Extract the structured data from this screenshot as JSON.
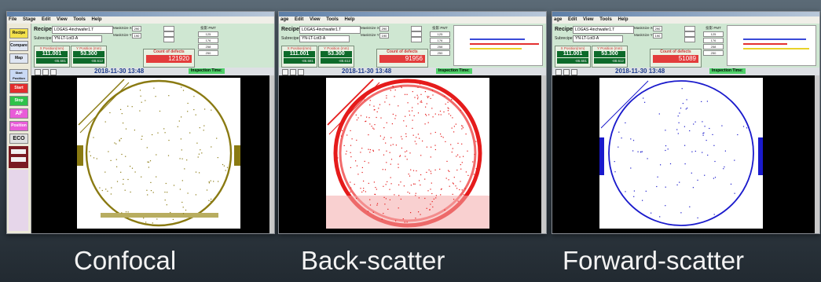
{
  "windows": [
    {
      "id": "confocal",
      "menu": [
        "File",
        "Stage",
        "Edit",
        "View",
        "Tools",
        "Help"
      ],
      "recipe": {
        "label": "Recipe",
        "value": "LOGAS-4inchwafer1.T"
      },
      "subrecipe": {
        "label": "Subrecipe",
        "value": "YN-LT-Lot3-A"
      },
      "mask_x": "MaskSize X",
      "mask_x_val": "290",
      "mask_y": "MaskSize Y",
      "mask_y_val": "190",
      "x_position": {
        "title": "X Position(mm)",
        "value": "111.001",
        "sub": "-86.681"
      },
      "y_position": {
        "title": "Y Position (mm)",
        "value": "53.300",
        "sub": "-88.612"
      },
      "count": {
        "title": "Count of defects",
        "value": "121920"
      },
      "pmt": {
        "label": "投影 PMT",
        "v1": "125",
        "v2": "176",
        "v3": "258",
        "v4": "250"
      },
      "datetime": "2018-11-30 13:48",
      "inspection_label": "Inspection Time:",
      "defect_color": "#8a7a12",
      "sidebar": {
        "buttons": [
          "Recipe",
          "Compare",
          "Map",
          "Start Position",
          "Start",
          "Stop",
          "AF",
          "Position",
          "ECO"
        ]
      }
    },
    {
      "id": "backscatter",
      "menu": [
        "age",
        "Edit",
        "View",
        "Tools",
        "Help"
      ],
      "recipe": {
        "label": "Recipe",
        "value": "LOGAS-4inchwafer1.T"
      },
      "subrecipe": {
        "label": "Subrecipe",
        "value": "YN-LT-Lot3-A"
      },
      "mask_x": "MaskSize X",
      "mask_x_val": "290",
      "mask_y": "MaskSize Y",
      "mask_y_val": "190",
      "x_position": {
        "title": "X Position(mm)",
        "value": "111.001",
        "sub": "-86.681"
      },
      "y_position": {
        "title": "Y Position (mm)",
        "value": "53.300",
        "sub": "-88.612"
      },
      "count": {
        "title": "Count of defects",
        "value": "91956"
      },
      "pmt": {
        "label": "投影 PMT",
        "v1": "125",
        "v2": "176",
        "v3": "258",
        "v4": "250"
      },
      "datetime": "2018-11-30 13:48",
      "inspection_label": "Inspection Time:",
      "defect_color": "#e51b1b"
    },
    {
      "id": "forwardscatter",
      "menu": [
        "age",
        "Edit",
        "View",
        "Tools",
        "Help"
      ],
      "recipe": {
        "label": "Recipe",
        "value": "LOGAS-4inchwafer1.T"
      },
      "subrecipe": {
        "label": "Subrecipe",
        "value": "YN-LT-Lot3-A"
      },
      "mask_x": "MaskSize X",
      "mask_x_val": "290",
      "mask_y": "MaskSize Y",
      "mask_y_val": "190",
      "x_position": {
        "title": "X Position(mm)",
        "value": "111.001",
        "sub": "-86.681"
      },
      "y_position": {
        "title": "Y Position (mm)",
        "value": "53.300",
        "sub": "-88.612"
      },
      "count": {
        "title": "Count of defects",
        "value": "51089"
      },
      "pmt": {
        "label": "投影 PMT",
        "v1": "125",
        "v2": "176",
        "v3": "258",
        "v4": "250"
      },
      "datetime": "2018-11-30 13:48",
      "inspection_label": "Inspection Time:",
      "defect_color": "#1a1acc"
    }
  ],
  "captions": [
    "Confocal",
    "Back-scatter",
    "Forward-scatter"
  ]
}
